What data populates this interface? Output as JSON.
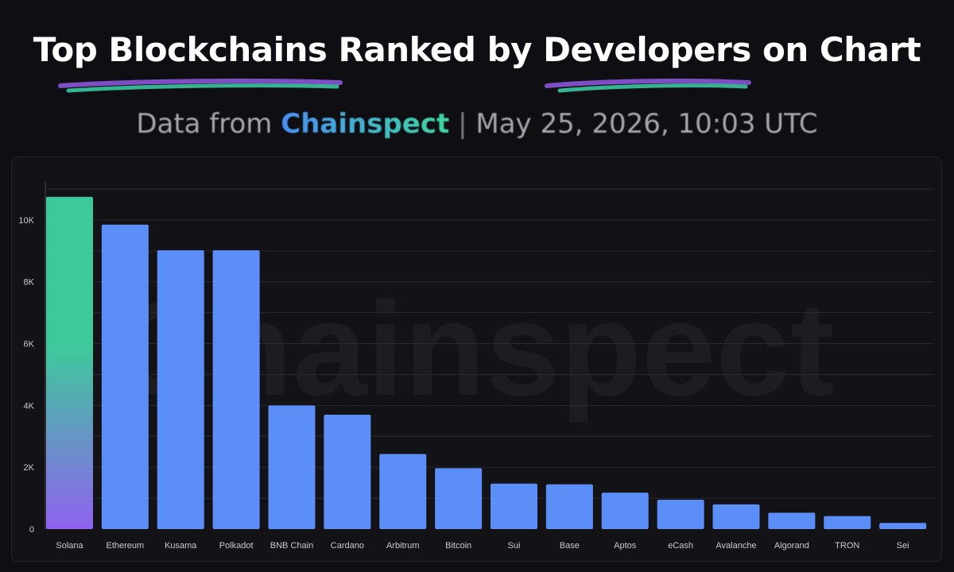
{
  "header": {
    "title": "Top Blockchains Ranked by Developers on Chart",
    "subtitle_prefix": "Data from",
    "subtitle_brand": "Chainspect",
    "subtitle_sep": "|",
    "subtitle_date": "May 25, 2026, 10:03 UTC"
  },
  "watermark": "Chainspect",
  "colors": {
    "bar": "#5b8ff7",
    "highlight_top": "#3ec99a",
    "highlight_bottom": "#8f62f0",
    "brand_start": "#4a8ff5",
    "brand_end": "#3fd6a0",
    "grid": "#2a2930",
    "axis_text": "#c9c9cf"
  },
  "chart_data": {
    "type": "bar",
    "categories": [
      "Solana",
      "Ethereum",
      "Kusama",
      "Polkadot",
      "BNB Chain",
      "Cardano",
      "Arbitrum",
      "Bitcoin",
      "Sui",
      "Base",
      "Aptos",
      "eCash",
      "Avalanche",
      "Algorand",
      "TRON",
      "Sei"
    ],
    "values": [
      10750,
      9850,
      9020,
      9020,
      4000,
      3700,
      2430,
      1970,
      1470,
      1450,
      1180,
      950,
      800,
      530,
      420,
      200
    ],
    "highlighted": "Solana",
    "ylim": [
      0,
      11000
    ],
    "yticks": [
      0,
      2000,
      4000,
      6000,
      8000,
      10000
    ],
    "ytick_labels": [
      "0",
      "2K",
      "4K",
      "6K",
      "8K",
      "10K"
    ],
    "grid": true,
    "title": "",
    "xlabel": "",
    "ylabel": ""
  }
}
